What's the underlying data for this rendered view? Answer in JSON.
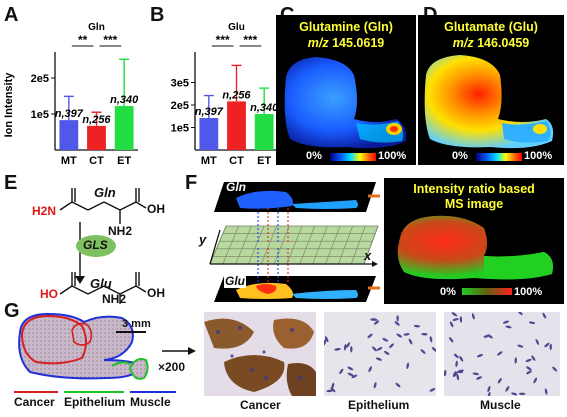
{
  "panels": {
    "A": "A",
    "B": "B",
    "C": "C",
    "D": "D",
    "E": "E",
    "F": "F",
    "G": "G"
  },
  "chart_data": [
    {
      "type": "bar",
      "title": "Gln",
      "ylabel": "Ion Intensity",
      "categories": [
        "MT",
        "CT",
        "ET"
      ],
      "values": [
        83000,
        67000,
        122000
      ],
      "errors": [
        66000,
        38000,
        130000
      ],
      "bar_colors": [
        "#4f58e8",
        "#ee2222",
        "#22dd44"
      ],
      "n_labels": [
        "n,397",
        "n,256",
        "n,340"
      ],
      "yticks": [
        {
          "v": 100000,
          "label": "1e5"
        },
        {
          "v": 200000,
          "label": "2e5"
        }
      ],
      "ylim": [
        0,
        250000
      ],
      "significance": [
        {
          "from": 0,
          "to": 1,
          "label": "**"
        },
        {
          "from": 1,
          "to": 2,
          "label": "***"
        }
      ]
    },
    {
      "type": "bar",
      "title": "Glu",
      "ylabel": "",
      "categories": [
        "MT",
        "CT",
        "ET"
      ],
      "values": [
        142000,
        216000,
        160000
      ],
      "errors": [
        100000,
        160000,
        115000
      ],
      "bar_colors": [
        "#4f58e8",
        "#ee2222",
        "#22dd44"
      ],
      "n_labels": [
        "n,397",
        "n,256",
        "n,340"
      ],
      "yticks": [
        {
          "v": 100000,
          "label": "1e5"
        },
        {
          "v": 200000,
          "label": "2e5"
        },
        {
          "v": 300000,
          "label": "3e5"
        }
      ],
      "ylim": [
        0,
        400000
      ],
      "significance": [
        {
          "from": 0,
          "to": 1,
          "label": "***"
        },
        {
          "from": 1,
          "to": 2,
          "label": "***"
        }
      ]
    }
  ],
  "ms_images": [
    {
      "title": "Glutamine (Gln)",
      "mz_label": "m/z",
      "mz_value": "145.0619",
      "scale_min": "0%",
      "scale_max": "100%"
    },
    {
      "title": "Glutamate (Glu)",
      "mz_label": "m/z",
      "mz_value": "146.0459",
      "scale_min": "0%",
      "scale_max": "100%"
    }
  ],
  "panel_e": {
    "gln": "Gln",
    "glu": "Glu",
    "gls": "GLS",
    "h2n": "H2N",
    "ho": "HO",
    "oh": "OH",
    "nh2": "NH2"
  },
  "panel_f": {
    "gln": "Gln",
    "glu": "Glu",
    "y": "y",
    "x": "x",
    "ratio_title_1": "Intensity ratio based",
    "ratio_title_2": "MS image",
    "scale_min": "0%",
    "scale_max": "100%",
    "colors": {
      "gln": "#ff2a1a",
      "glu": "#1fd21f"
    }
  },
  "panel_g": {
    "scale_bar": "3 mm",
    "magnification": "×200",
    "legend": [
      {
        "label": "Cancer",
        "color": "#d62020"
      },
      {
        "label": "Epithelium",
        "color": "#22c02a"
      },
      {
        "label": "Muscle",
        "color": "#2030d8"
      }
    ],
    "histology": [
      "Cancer",
      "Epithelium",
      "Muscle"
    ]
  }
}
